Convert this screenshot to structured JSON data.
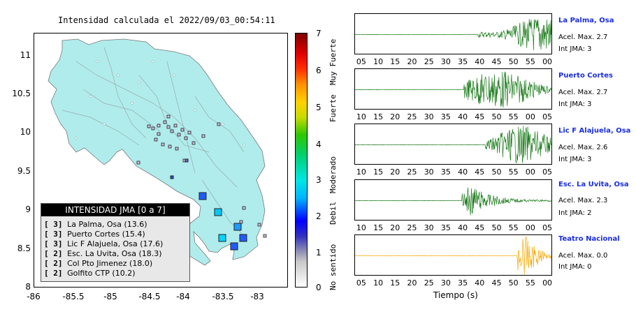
{
  "map": {
    "title": "Intensidad calculada el 2022/09/03_00:54:11",
    "y_ticks": [
      "11",
      "10.5",
      "10",
      "9.5",
      "9",
      "8.5",
      "8"
    ],
    "x_ticks": [
      "-86",
      "-85.5",
      "-85",
      "-84.5",
      "-84",
      "-83.5",
      "-83"
    ]
  },
  "legend": {
    "title": "INTENSIDAD JMA [0 a 7]",
    "entries": [
      {
        "level": "[ 3]",
        "name": "La Palma, Osa (13.6)"
      },
      {
        "level": "[ 3]",
        "name": "Puerto Cortes (15.4)"
      },
      {
        "level": "[ 3]",
        "name": "Lic F Alajuela, Osa (17.6)"
      },
      {
        "level": "[ 2]",
        "name": "Esc. La Uvita, Osa (18.3)"
      },
      {
        "level": "[ 2]",
        "name": "Col Pto Jimenez (18.0)"
      },
      {
        "level": "[ 2]",
        "name": "Golfito CTP (10.2)"
      }
    ]
  },
  "colorbar": {
    "ticks": [
      "7",
      "6",
      "5",
      "4",
      "3",
      "2",
      "1",
      "0"
    ],
    "labels": [
      "Muy Fuerte",
      "Fuerte",
      "Moderado",
      "Debil",
      "No sentido"
    ]
  },
  "stations": [
    {
      "name": "La Palma, Osa",
      "accel": "Acel. Max. 2.7",
      "jma": "Int JMA: 3",
      "color": "#1a7a1a",
      "ticks": [
        "05",
        "10",
        "15",
        "20",
        "25",
        "30",
        "35",
        "40",
        "45",
        "50",
        "55",
        "00"
      ]
    },
    {
      "name": "Puerto Cortes",
      "accel": "Acel. Max. 2.7",
      "jma": "Int JMA: 3",
      "color": "#1a7a1a",
      "ticks": [
        "10",
        "15",
        "20",
        "25",
        "30",
        "35",
        "40",
        "45",
        "50",
        "55",
        "00",
        "05"
      ]
    },
    {
      "name": "Lic F Alajuela, Osa",
      "accel": "Acel. Max. 2.6",
      "jma": "Int JMA: 3",
      "color": "#1a7a1a",
      "ticks": [
        "10",
        "15",
        "20",
        "25",
        "30",
        "35",
        "40",
        "45",
        "50",
        "55",
        "00",
        "05"
      ]
    },
    {
      "name": "Esc. La Uvita, Osa",
      "accel": "Acel. Max. 2.3",
      "jma": "Int JMA: 2",
      "color": "#1a7a1a",
      "ticks": [
        "10",
        "15",
        "20",
        "25",
        "30",
        "35",
        "40",
        "45",
        "50",
        "55",
        "00",
        "05"
      ]
    },
    {
      "name": "Teatro Nacional",
      "accel": "Acel. Max. 0.0",
      "jma": "Int JMA: 0",
      "color": "#f5a800",
      "ticks": [
        "05",
        "10",
        "15",
        "20",
        "25",
        "30",
        "35",
        "40",
        "45",
        "50",
        "55",
        "00"
      ]
    }
  ],
  "time_axis_label": "Tiempo (s)"
}
